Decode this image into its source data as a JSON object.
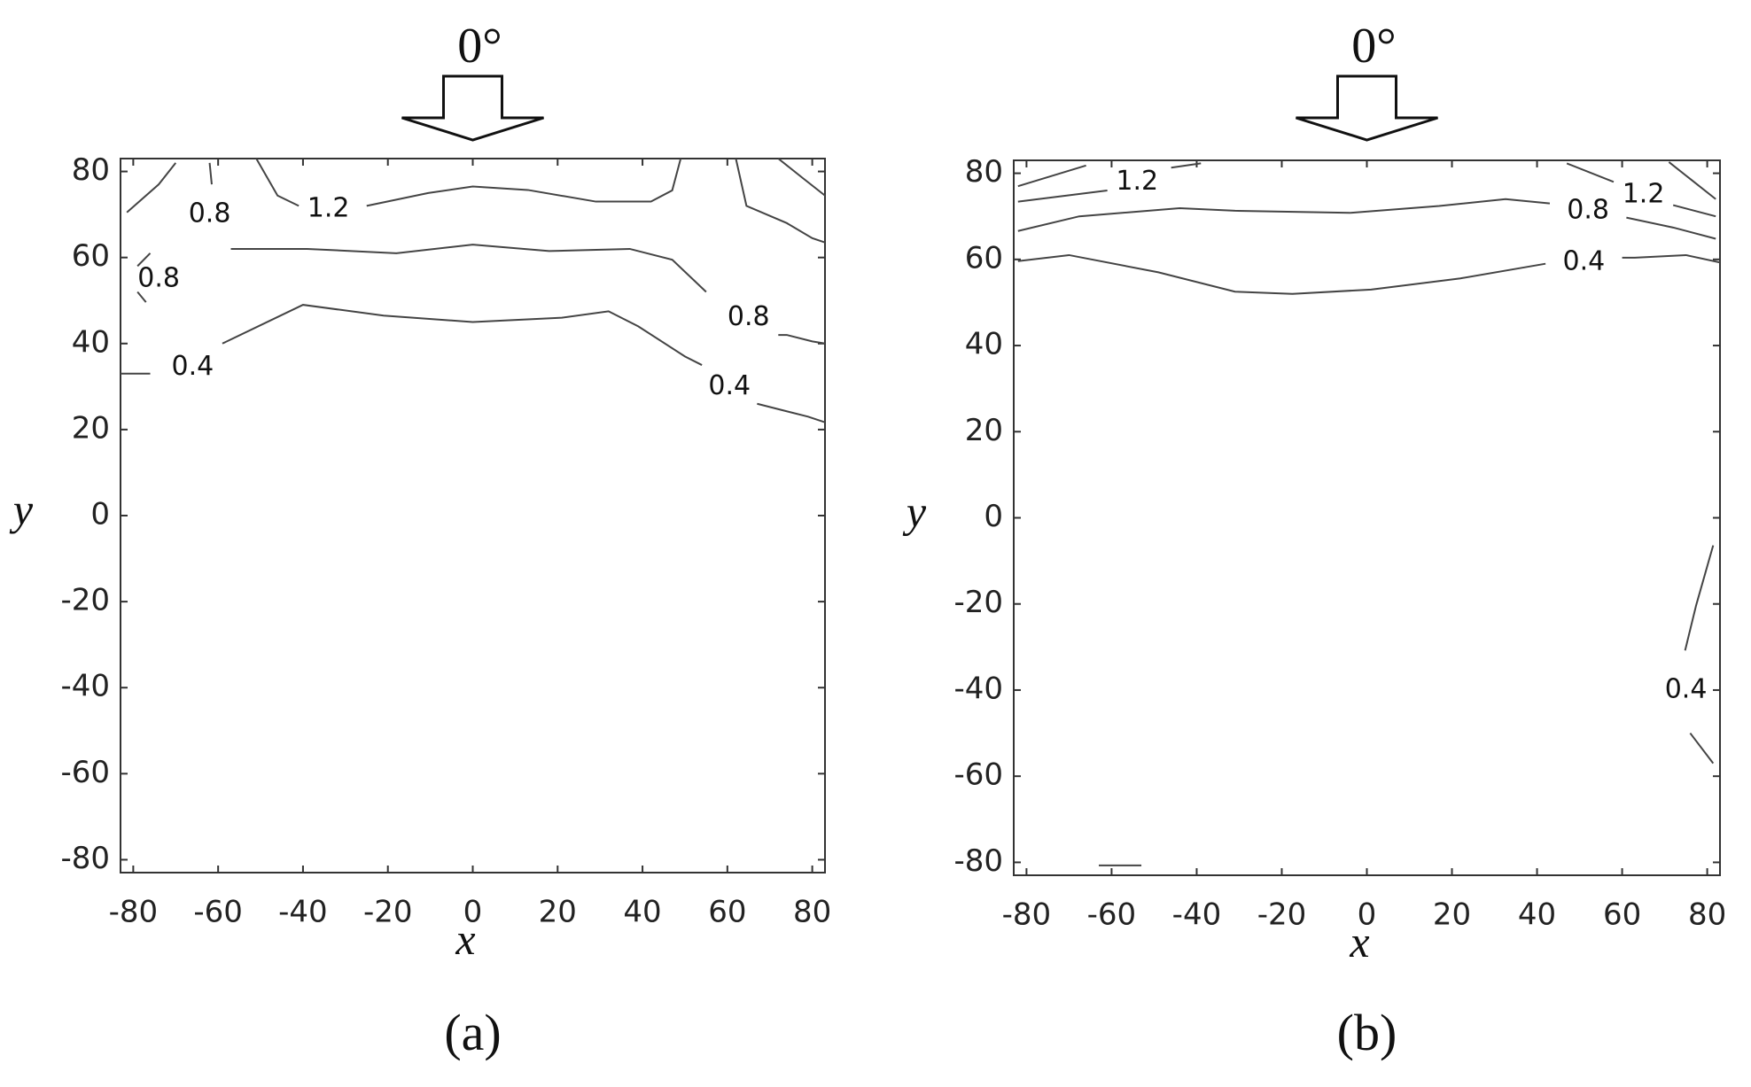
{
  "chart_data": [
    {
      "type": "contour",
      "annotation": "0°",
      "caption": "(a)",
      "x_label": "x",
      "y_label": "y",
      "xlim": [
        -83,
        83
      ],
      "ylim": [
        -83,
        83
      ],
      "xticks": [
        -80,
        -60,
        -40,
        -20,
        0,
        20,
        40,
        60,
        80
      ],
      "yticks": [
        -80,
        -60,
        -40,
        -20,
        0,
        20,
        40,
        60,
        80
      ],
      "contours": [
        {
          "level": 0.4,
          "x": [
            -83,
            -76
          ],
          "y": [
            33,
            33
          ]
        },
        {
          "level": 0.4,
          "x": [
            -59,
            -40,
            -21,
            0,
            21,
            32,
            39,
            50,
            54
          ],
          "y": [
            40,
            49,
            46.5,
            45,
            46,
            47.5,
            44,
            37,
            35
          ]
        },
        {
          "level": 0.4,
          "x": [
            67,
            71,
            79,
            83
          ],
          "y": [
            26,
            25,
            23,
            21.7
          ]
        },
        {
          "level": 0.8,
          "x": [
            -57,
            -39,
            -18,
            0,
            18,
            37,
            47,
            55
          ],
          "y": [
            62,
            62,
            61,
            63,
            61.5,
            62,
            59.5,
            52
          ]
        },
        {
          "level": 0.8,
          "x": [
            72,
            74,
            80,
            83
          ],
          "y": [
            42,
            42,
            40.5,
            40
          ]
        },
        {
          "level": 0.8,
          "x": [
            -81.5,
            -74,
            -70
          ],
          "y": [
            70.5,
            77,
            82
          ]
        },
        {
          "level": 0.8,
          "x": [
            -62,
            -61.5
          ],
          "y": [
            82,
            77
          ]
        },
        {
          "level": 0.8,
          "x": [
            -76,
            -79
          ],
          "y": [
            61,
            58
          ]
        },
        {
          "level": 0.8,
          "x": [
            -79,
            -77
          ],
          "y": [
            52,
            49.6
          ]
        },
        {
          "level": 1.2,
          "x": [
            -51,
            -46,
            -41
          ],
          "y": [
            83,
            74.4,
            72
          ]
        },
        {
          "level": 1.2,
          "x": [
            -25,
            -10.5,
            0,
            13,
            29,
            42,
            47,
            49
          ],
          "y": [
            72,
            75,
            76.5,
            75.7,
            73,
            73,
            75.6,
            83
          ]
        },
        {
          "level": 0.8,
          "x": [
            62,
            64.5,
            74,
            80,
            83
          ],
          "y": [
            83,
            72,
            68,
            64.5,
            63.5
          ]
        },
        {
          "level": 1.2,
          "x": [
            72,
            77.6,
            83
          ],
          "y": [
            83,
            78.6,
            74.4
          ]
        }
      ],
      "labels": [
        {
          "level": 0.4,
          "x": -66,
          "y": 34.5
        },
        {
          "level": 0.4,
          "x": 60.5,
          "y": 30
        },
        {
          "level": 0.8,
          "x": 65,
          "y": 46
        },
        {
          "level": 0.8,
          "x": -62,
          "y": 70
        },
        {
          "level": 0.8,
          "x": -74,
          "y": 55
        },
        {
          "level": 1.2,
          "x": -34,
          "y": 71.3
        }
      ]
    },
    {
      "type": "contour",
      "annotation": "0°",
      "caption": "(b)",
      "x_label": "x",
      "y_label": "y",
      "xlim": [
        -83,
        83
      ],
      "ylim": [
        -83,
        83
      ],
      "xticks": [
        -80,
        -60,
        -40,
        -20,
        0,
        20,
        40,
        60,
        80
      ],
      "yticks": [
        -80,
        -60,
        -40,
        -20,
        0,
        20,
        40,
        60,
        80
      ],
      "contours": [
        {
          "level": 0.4,
          "x": [
            -82,
            -70,
            -49,
            -31,
            -17.5,
            1,
            22,
            42
          ],
          "y": [
            59.6,
            61,
            57,
            52.5,
            52,
            53,
            55.6,
            59
          ]
        },
        {
          "level": 0.4,
          "x": [
            60,
            63,
            75,
            83
          ],
          "y": [
            60.4,
            60.4,
            61,
            59.3
          ]
        },
        {
          "level": 0.8,
          "x": [
            -82,
            -67.6,
            -44,
            -31,
            -4,
            17,
            32.6,
            43
          ],
          "y": [
            66.6,
            70,
            71.9,
            71.3,
            70.8,
            72.4,
            74,
            73
          ]
        },
        {
          "level": 0.8,
          "x": [
            61,
            72,
            82
          ],
          "y": [
            69.7,
            67.4,
            64.8
          ]
        },
        {
          "level": 1.2,
          "x": [
            -82,
            -61
          ],
          "y": [
            73.4,
            76
          ]
        },
        {
          "level": 1.2,
          "x": [
            -46,
            -39
          ],
          "y": [
            81.3,
            82.3
          ]
        },
        {
          "level": 0.8,
          "x": [
            -82,
            -66
          ],
          "y": [
            77,
            81.8
          ]
        },
        {
          "level": 1.2,
          "x": [
            47,
            58
          ],
          "y": [
            82.3,
            78
          ]
        },
        {
          "level": 1.2,
          "x": [
            72,
            82
          ],
          "y": [
            72.6,
            70
          ]
        },
        {
          "level": 0.8,
          "x": [
            71,
            82
          ],
          "y": [
            82.6,
            74
          ]
        },
        {
          "level": 0.4,
          "x": [
            81.4,
            77.4,
            74.8
          ],
          "y": [
            -6.4,
            -20.3,
            -30.8
          ]
        },
        {
          "level": 0.4,
          "x": [
            76,
            81.4
          ],
          "y": [
            -50,
            -57
          ]
        },
        {
          "level": 0.4,
          "x": [
            -63,
            -53
          ],
          "y": [
            -80.7,
            -80.7
          ]
        }
      ],
      "labels": [
        {
          "level": 0.4,
          "x": 51,
          "y": 59.3
        },
        {
          "level": 0.8,
          "x": 52,
          "y": 71.3
        },
        {
          "level": 1.2,
          "x": -54,
          "y": 78
        },
        {
          "level": 1.2,
          "x": 65,
          "y": 75
        },
        {
          "level": 0.4,
          "x": 75,
          "y": -40
        }
      ]
    }
  ]
}
